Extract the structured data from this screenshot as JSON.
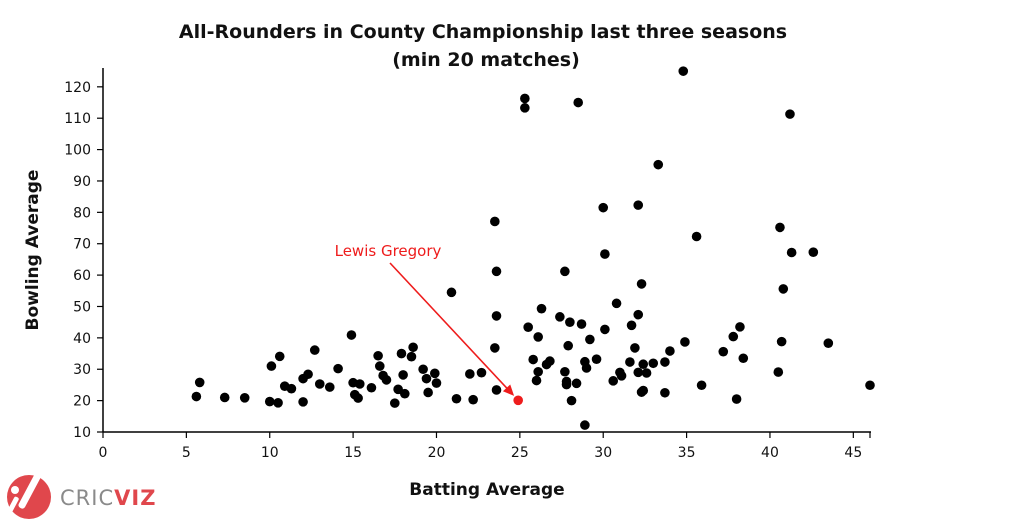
{
  "colors": {
    "point": "#000000",
    "highlight": "#ee1c1c",
    "axis": "#000000",
    "logo_grey": "#8a8a8a",
    "logo_red": "#e0474c"
  },
  "logo": {
    "prefix": "CRIC",
    "suffix": "VIZ",
    "icon": "cricket-bat-ball-icon"
  },
  "chart_data": {
    "type": "scatter",
    "title_line1": "All-Rounders in County Championship last three seasons",
    "title_line2": "(min 20 matches)",
    "xlabel": "Batting Average",
    "ylabel": "Bowling Average",
    "xlim": [
      0,
      46
    ],
    "ylim": [
      10,
      126
    ],
    "xticks": [
      0,
      5,
      10,
      15,
      20,
      25,
      30,
      35,
      40,
      45
    ],
    "yticks": [
      10,
      20,
      30,
      40,
      50,
      60,
      70,
      80,
      90,
      100,
      110,
      120
    ],
    "grid": false,
    "highlight": {
      "label": "Lewis Gregory",
      "x": 24.9,
      "y": 20.1
    },
    "points": [
      [
        5.6,
        21.3
      ],
      [
        5.8,
        25.8
      ],
      [
        7.3,
        21
      ],
      [
        8.5,
        20.9
      ],
      [
        10.0,
        19.7
      ],
      [
        10.1,
        31
      ],
      [
        10.5,
        19.3
      ],
      [
        10.6,
        34.1
      ],
      [
        10.9,
        24.6
      ],
      [
        11.3,
        23.8
      ],
      [
        12.0,
        19.6
      ],
      [
        12.0,
        27
      ],
      [
        12.3,
        28.4
      ],
      [
        12.7,
        36.1
      ],
      [
        13.0,
        25.3
      ],
      [
        13.6,
        24.3
      ],
      [
        14.1,
        30.2
      ],
      [
        14.9,
        40.9
      ],
      [
        15.0,
        25.7
      ],
      [
        15.1,
        21.9
      ],
      [
        15.3,
        20.8
      ],
      [
        15.4,
        25.3
      ],
      [
        16.1,
        24.1
      ],
      [
        16.5,
        34.3
      ],
      [
        16.6,
        31.0
      ],
      [
        16.8,
        28.0
      ],
      [
        17.0,
        26.6
      ],
      [
        17.5,
        19.2
      ],
      [
        17.7,
        23.6
      ],
      [
        17.9,
        35.0
      ],
      [
        18.0,
        28.2
      ],
      [
        18.1,
        22.2
      ],
      [
        18.5,
        34.0
      ],
      [
        18.6,
        37.0
      ],
      [
        19.2,
        30.0
      ],
      [
        19.4,
        27.0
      ],
      [
        19.5,
        22.6
      ],
      [
        19.9,
        28.7
      ],
      [
        20.0,
        25.6
      ],
      [
        20.9,
        54.5
      ],
      [
        21.2,
        20.6
      ],
      [
        22.0,
        28.5
      ],
      [
        22.2,
        20.3
      ],
      [
        22.7,
        28.9
      ],
      [
        23.5,
        36.8
      ],
      [
        23.5,
        77.1
      ],
      [
        23.6,
        61.2
      ],
      [
        23.6,
        47.0
      ],
      [
        23.6,
        23.4
      ],
      [
        25.3,
        116.3
      ],
      [
        25.3,
        113.3
      ],
      [
        25.5,
        43.4
      ],
      [
        25.8,
        33.1
      ],
      [
        26.0,
        26.4
      ],
      [
        26.1,
        40.3
      ],
      [
        26.1,
        29.2
      ],
      [
        26.3,
        49.3
      ],
      [
        26.6,
        31.5
      ],
      [
        26.8,
        32.6
      ],
      [
        27.4,
        46.7
      ],
      [
        27.7,
        61.2
      ],
      [
        27.7,
        29.2
      ],
      [
        27.8,
        25.1
      ],
      [
        27.8,
        26.1
      ],
      [
        27.9,
        37.5
      ],
      [
        28.0,
        45.0
      ],
      [
        28.1,
        20.0
      ],
      [
        28.4,
        25.5
      ],
      [
        28.5,
        115.0
      ],
      [
        28.7,
        44.4
      ],
      [
        28.9,
        32.4
      ],
      [
        28.9,
        12.2
      ],
      [
        29.0,
        30.4
      ],
      [
        29.2,
        39.5
      ],
      [
        29.6,
        33.2
      ],
      [
        30.0,
        81.5
      ],
      [
        30.1,
        66.7
      ],
      [
        30.1,
        42.7
      ],
      [
        30.6,
        26.3
      ],
      [
        30.8,
        51.0
      ],
      [
        31.0,
        29.0
      ],
      [
        31.1,
        27.9
      ],
      [
        31.6,
        32.3
      ],
      [
        31.7,
        44.0
      ],
      [
        31.9,
        36.8
      ],
      [
        32.1,
        82.3
      ],
      [
        32.1,
        47.4
      ],
      [
        32.1,
        29.0
      ],
      [
        32.3,
        57.2
      ],
      [
        32.3,
        22.7
      ],
      [
        32.4,
        23.2
      ],
      [
        32.4,
        31.6
      ],
      [
        32.6,
        28.8
      ],
      [
        33.0,
        31.9
      ],
      [
        33.3,
        95.2
      ],
      [
        33.7,
        22.5
      ],
      [
        33.7,
        32.3
      ],
      [
        34.0,
        35.8
      ],
      [
        34.8,
        125.0
      ],
      [
        34.9,
        38.7
      ],
      [
        35.6,
        72.3
      ],
      [
        35.9,
        24.9
      ],
      [
        37.2,
        35.6
      ],
      [
        37.8,
        40.4
      ],
      [
        38.0,
        20.5
      ],
      [
        38.2,
        43.5
      ],
      [
        38.4,
        33.5
      ],
      [
        40.5,
        29.1
      ],
      [
        40.6,
        75.2
      ],
      [
        40.7,
        38.8
      ],
      [
        40.8,
        55.6
      ],
      [
        41.2,
        111.3
      ],
      [
        41.3,
        67.2
      ],
      [
        42.6,
        67.3
      ],
      [
        43.5,
        38.3
      ],
      [
        46.0,
        24.9
      ]
    ]
  }
}
